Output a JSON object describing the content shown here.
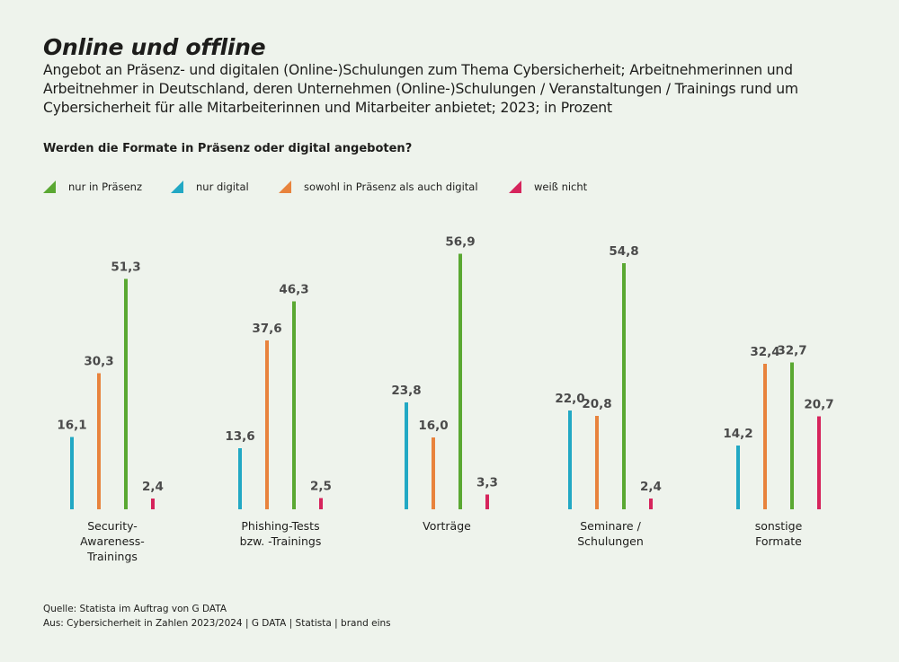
{
  "header": {
    "title": "Online und offline",
    "subtitle": "Angebot an Präsenz- und digitalen (Online-)Schulungen zum Thema Cybersicherheit; Arbeitnehmerinnen und Arbeitnehmer in Deutschland, deren Unternehmen (Online-)Schulungen / Veranstaltungen / Trainings rund um Cybersicherheit für alle Mitarbeiterinnen und Mitarbeiter anbietet; 2023; in Prozent",
    "question": "Werden die Formate in Präsenz oder digital angeboten?"
  },
  "footer": {
    "source": "Quelle: Statista im Auftrag von G DATA",
    "from": "Aus: Cybersicherheit in Zahlen 2023/2024 | G DATA | Statista | brand eins"
  },
  "chart_data": {
    "type": "bar",
    "categories": [
      [
        "Security-",
        "Awareness-",
        "Trainings"
      ],
      [
        "Phishing-Tests",
        "bzw. -Trainings"
      ],
      [
        "Vorträge"
      ],
      [
        "Seminare /",
        "Schulungen"
      ],
      [
        "sonstige",
        "Formate"
      ]
    ],
    "series_order": [
      "nur digital",
      "sowohl in Präsenz als auch digital",
      "nur in Präsenz",
      "weiß nicht"
    ],
    "series": [
      {
        "name": "nur in Präsenz",
        "color": "#5aa832",
        "values": [
          51.3,
          46.3,
          56.9,
          54.8,
          32.7
        ]
      },
      {
        "name": "nur digital",
        "color": "#22a8c4",
        "values": [
          16.1,
          13.6,
          23.8,
          22.0,
          14.2
        ]
      },
      {
        "name": "sowohl in Präsenz als auch digital",
        "color": "#e8833d",
        "values": [
          30.3,
          37.6,
          16.0,
          20.8,
          32.4
        ]
      },
      {
        "name": "weiß nicht",
        "color": "#d6245c",
        "values": [
          2.4,
          2.5,
          3.3,
          2.4,
          20.7
        ]
      }
    ],
    "ylim": [
      0,
      57
    ],
    "decimal_separator": ","
  }
}
